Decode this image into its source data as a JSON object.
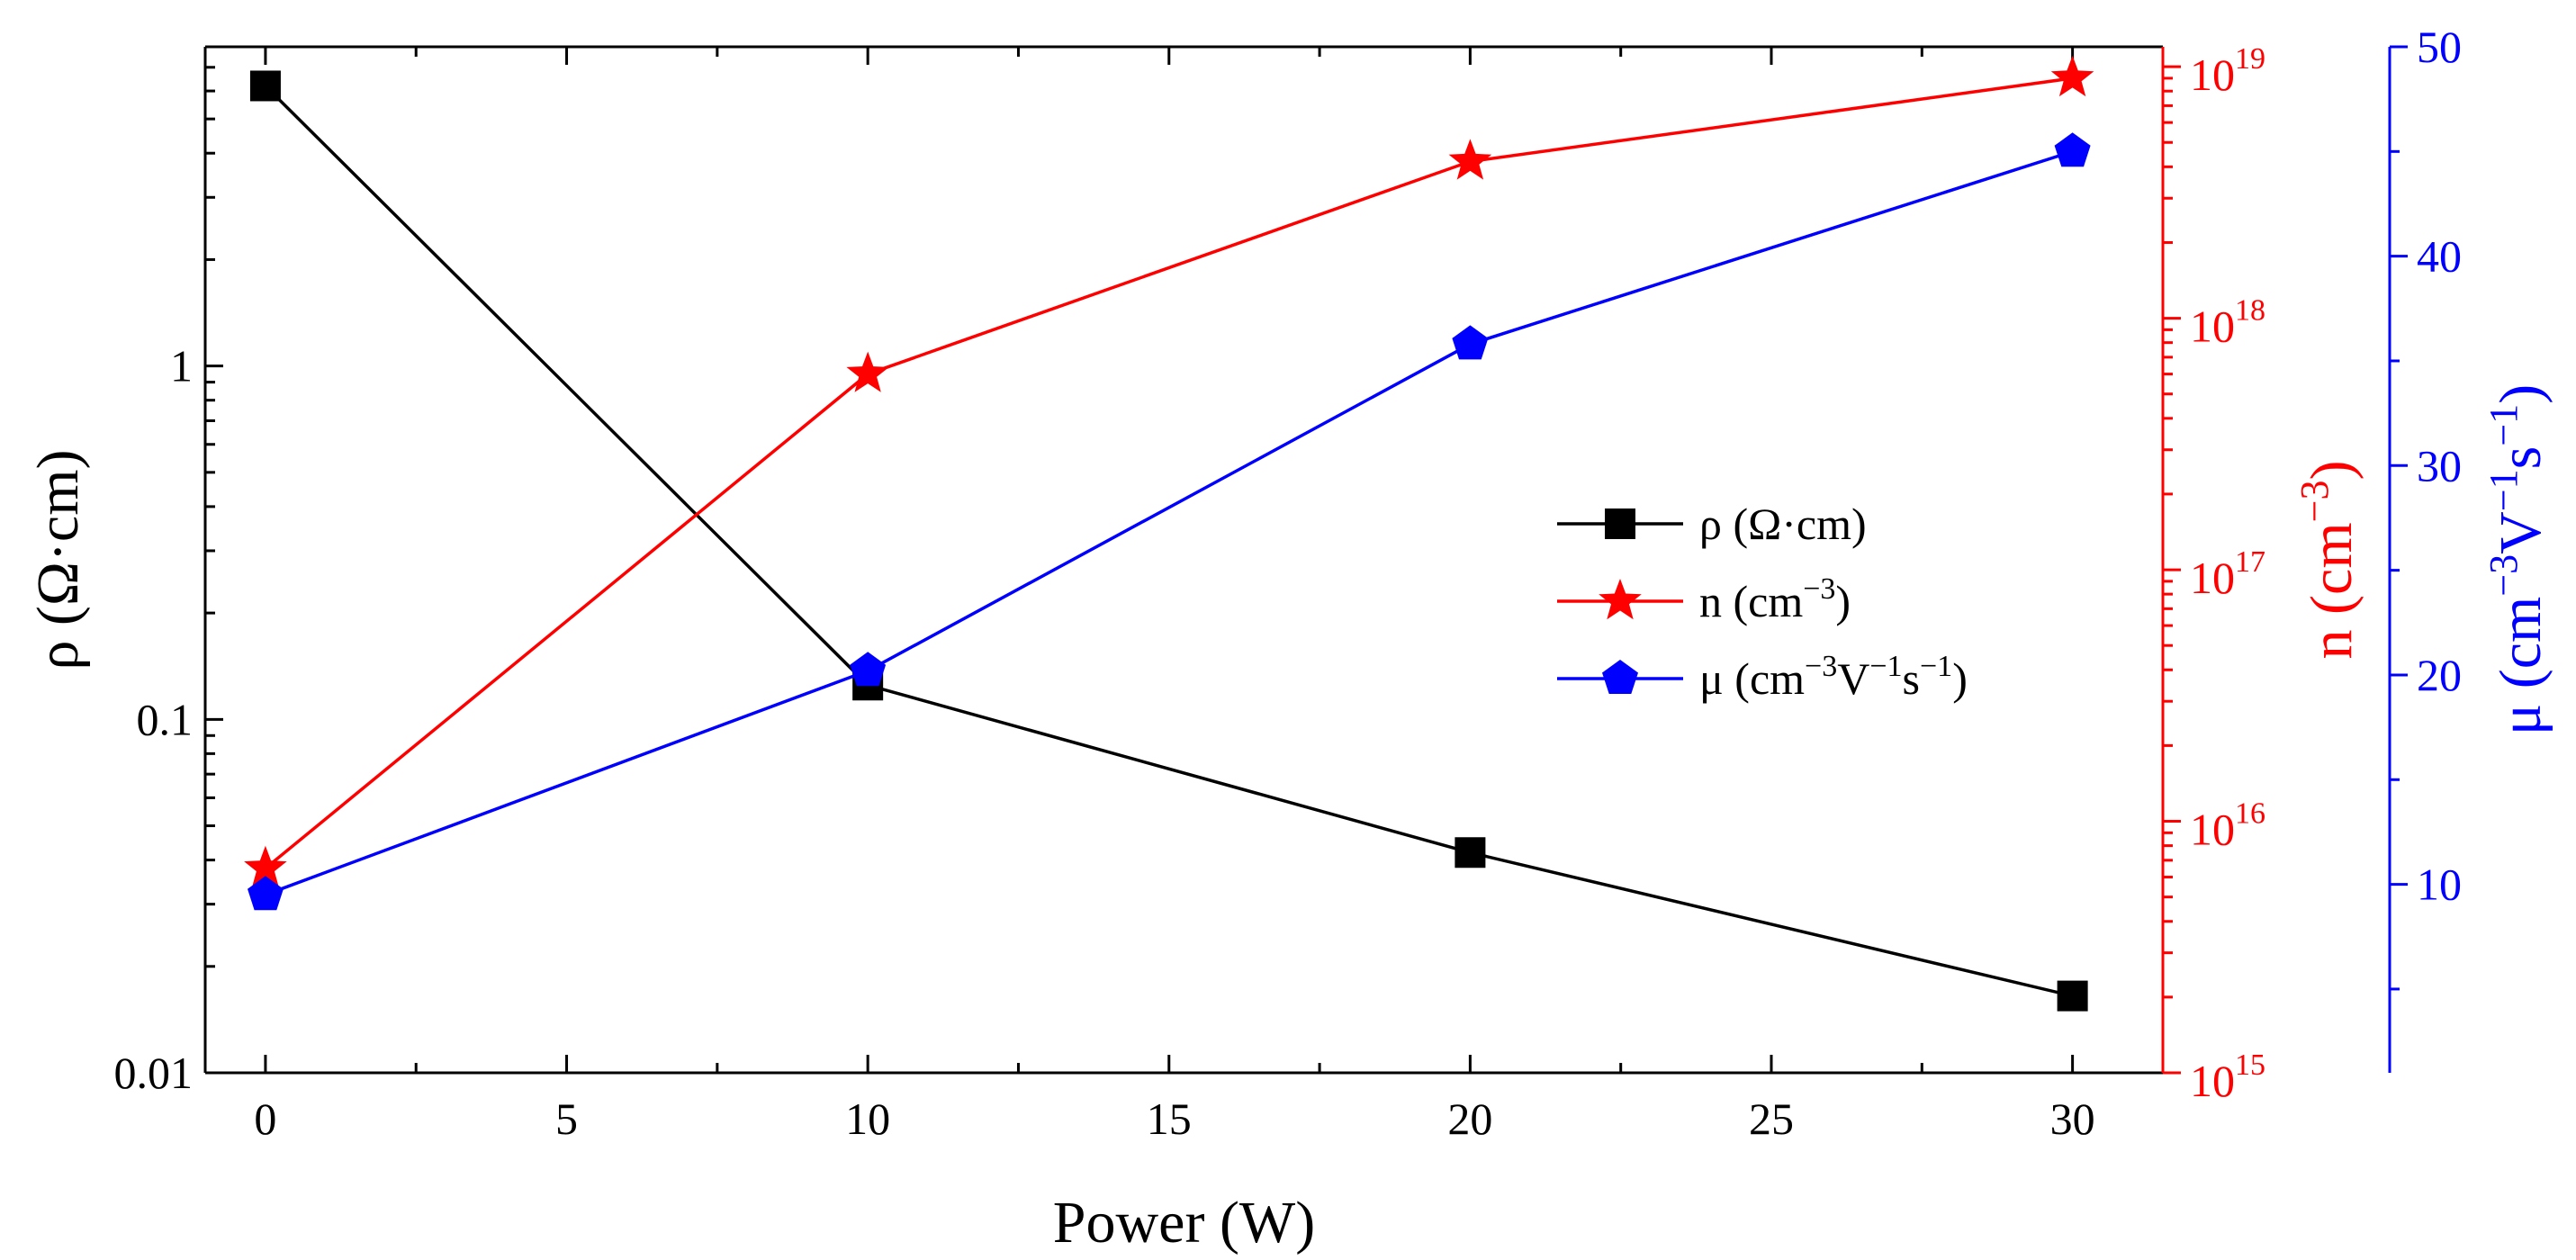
{
  "chart_data": {
    "type": "line",
    "xlabel": "Power (W)",
    "x": [
      0,
      10,
      20,
      30
    ],
    "xlim": [
      -1,
      31.5
    ],
    "xticks": [
      0,
      5,
      10,
      15,
      20,
      25,
      30
    ],
    "xtick_labels": [
      "0",
      "5",
      "10",
      "15",
      "20",
      "25",
      "30"
    ],
    "series": [
      {
        "key": "rho",
        "name": "ρ (Ω·cm)",
        "axis": "left",
        "marker": "square",
        "color": "#000000",
        "values": [
          6.2,
          0.125,
          0.042,
          0.0165
        ]
      },
      {
        "key": "n",
        "name": "n (cm⁻³)",
        "axis": "right1",
        "marker": "star",
        "color": "#ff0000",
        "values": [
          6500000000000000.0,
          6e+17,
          4.2e+18,
          9e+18
        ]
      },
      {
        "key": "mu",
        "name": "μ (cm⁻³V⁻¹s⁻¹)",
        "axis": "right2",
        "marker": "pentagon",
        "color": "#0000ff",
        "values": [
          9.5,
          20.2,
          35.8,
          45.0
        ]
      }
    ],
    "axes": {
      "left": {
        "label": "ρ (Ω·cm)",
        "scale": "log",
        "lim": [
          0.01,
          8
        ],
        "ticks": [
          0.01,
          0.1,
          1
        ],
        "tick_labels": [
          "0.01",
          "0.1",
          "1"
        ],
        "color": "#000000"
      },
      "right1": {
        "label": "n (cm⁻³)",
        "scale": "log",
        "lim": [
          1000000000000000.0,
          1.2e+19
        ],
        "ticks": [
          1000000000000000.0,
          1e+16,
          1e+17,
          1e+18,
          1e+19
        ],
        "tick_mantissa": [
          "10",
          "10",
          "10",
          "10",
          "10"
        ],
        "tick_exponents": [
          "15",
          "16",
          "17",
          "18",
          "19"
        ],
        "color": "#ff0000"
      },
      "right2": {
        "label": "μ (cm⁻³V⁻¹s⁻¹)",
        "scale": "linear",
        "lim": [
          1,
          50
        ],
        "ticks": [
          10,
          20,
          30,
          40,
          50
        ],
        "tick_labels": [
          "10",
          "20",
          "30",
          "40",
          "50"
        ],
        "color": "#0000ff"
      }
    },
    "legend": {
      "position": "center-right",
      "entries": [
        {
          "series": "rho",
          "base": "ρ (Ω·cm)",
          "text": "ρ (Ω·cm)"
        },
        {
          "series": "n",
          "base": "n (cm",
          "sup": "−3",
          "tail": ")",
          "text": "n (cm⁻³)"
        },
        {
          "series": "mu",
          "base": "μ (cm",
          "sup": "−3",
          "mid": "V",
          "sup2": "−1",
          "mid2": "s",
          "sup3": "−1",
          "tail": ")",
          "text": "μ (cm⁻³V⁻¹s⁻¹)"
        }
      ]
    },
    "grid": false
  }
}
